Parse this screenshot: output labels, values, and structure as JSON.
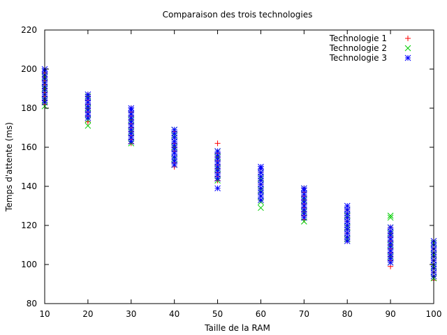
{
  "chart_data": {
    "type": "scatter",
    "title": "Comparaison des trois technologies",
    "xlabel": "Taille de la RAM",
    "ylabel": "Temps d'attente (ms)",
    "xlim": [
      10,
      100
    ],
    "ylim": [
      80,
      220
    ],
    "xticks": [
      10,
      20,
      30,
      40,
      50,
      60,
      70,
      80,
      90,
      100
    ],
    "yticks": [
      80,
      100,
      120,
      140,
      160,
      180,
      200,
      220
    ],
    "grid": false,
    "legend_position": "top-right",
    "series": [
      {
        "name": "Technologie 1",
        "marker": "plus",
        "color": "#ff0000",
        "points": [
          [
            10,
            182
          ],
          [
            10,
            184
          ],
          [
            10,
            186
          ],
          [
            10,
            188
          ],
          [
            10,
            190
          ],
          [
            10,
            192
          ],
          [
            10,
            194
          ],
          [
            10,
            196
          ],
          [
            10,
            198
          ],
          [
            10,
            200
          ],
          [
            20,
            173
          ],
          [
            20,
            176
          ],
          [
            20,
            178
          ],
          [
            20,
            180
          ],
          [
            20,
            182
          ],
          [
            20,
            184
          ],
          [
            20,
            186
          ],
          [
            20,
            187
          ],
          [
            30,
            162
          ],
          [
            30,
            164
          ],
          [
            30,
            166
          ],
          [
            30,
            168
          ],
          [
            30,
            170
          ],
          [
            30,
            172
          ],
          [
            30,
            174
          ],
          [
            30,
            176
          ],
          [
            30,
            178
          ],
          [
            30,
            180
          ],
          [
            40,
            150
          ],
          [
            40,
            152
          ],
          [
            40,
            155
          ],
          [
            40,
            158
          ],
          [
            40,
            160
          ],
          [
            40,
            162
          ],
          [
            40,
            165
          ],
          [
            40,
            168
          ],
          [
            50,
            143
          ],
          [
            50,
            145
          ],
          [
            50,
            147
          ],
          [
            50,
            149
          ],
          [
            50,
            151
          ],
          [
            50,
            153
          ],
          [
            50,
            155
          ],
          [
            50,
            157
          ],
          [
            50,
            162
          ],
          [
            60,
            133
          ],
          [
            60,
            135
          ],
          [
            60,
            137
          ],
          [
            60,
            139
          ],
          [
            60,
            141
          ],
          [
            60,
            143
          ],
          [
            60,
            145
          ],
          [
            60,
            147
          ],
          [
            60,
            149
          ],
          [
            70,
            123
          ],
          [
            70,
            125
          ],
          [
            70,
            127
          ],
          [
            70,
            129
          ],
          [
            70,
            131
          ],
          [
            70,
            133
          ],
          [
            70,
            135
          ],
          [
            70,
            137
          ],
          [
            70,
            139
          ],
          [
            80,
            112
          ],
          [
            80,
            114
          ],
          [
            80,
            116
          ],
          [
            80,
            118
          ],
          [
            80,
            120
          ],
          [
            80,
            122
          ],
          [
            80,
            124
          ],
          [
            80,
            126
          ],
          [
            80,
            128
          ],
          [
            90,
            99
          ],
          [
            90,
            102
          ],
          [
            90,
            104
          ],
          [
            90,
            106
          ],
          [
            90,
            108
          ],
          [
            90,
            110
          ],
          [
            90,
            112
          ],
          [
            90,
            114
          ],
          [
            90,
            116
          ],
          [
            90,
            119
          ],
          [
            100,
            92
          ],
          [
            100,
            94
          ],
          [
            100,
            96
          ],
          [
            100,
            98
          ],
          [
            100,
            100
          ],
          [
            100,
            102
          ],
          [
            100,
            104
          ],
          [
            100,
            106
          ],
          [
            100,
            108
          ],
          [
            100,
            110
          ]
        ]
      },
      {
        "name": "Technologie 2",
        "marker": "cross",
        "color": "#00cc00",
        "points": [
          [
            10,
            181
          ],
          [
            10,
            184
          ],
          [
            10,
            187
          ],
          [
            10,
            190
          ],
          [
            10,
            193
          ],
          [
            10,
            196
          ],
          [
            10,
            199
          ],
          [
            20,
            171
          ],
          [
            20,
            174
          ],
          [
            20,
            177
          ],
          [
            20,
            180
          ],
          [
            20,
            183
          ],
          [
            20,
            186
          ],
          [
            30,
            162
          ],
          [
            30,
            165
          ],
          [
            30,
            168
          ],
          [
            30,
            171
          ],
          [
            30,
            174
          ],
          [
            30,
            177
          ],
          [
            40,
            151
          ],
          [
            40,
            154
          ],
          [
            40,
            157
          ],
          [
            40,
            160
          ],
          [
            40,
            163
          ],
          [
            40,
            166
          ],
          [
            40,
            169
          ],
          [
            50,
            143
          ],
          [
            50,
            146
          ],
          [
            50,
            149
          ],
          [
            50,
            152
          ],
          [
            50,
            155
          ],
          [
            50,
            158
          ],
          [
            60,
            129
          ],
          [
            60,
            132
          ],
          [
            60,
            135
          ],
          [
            60,
            138
          ],
          [
            60,
            141
          ],
          [
            60,
            144
          ],
          [
            60,
            147
          ],
          [
            70,
            122
          ],
          [
            70,
            124
          ],
          [
            70,
            127
          ],
          [
            70,
            130
          ],
          [
            70,
            133
          ],
          [
            70,
            136
          ],
          [
            70,
            139
          ],
          [
            80,
            113
          ],
          [
            80,
            116
          ],
          [
            80,
            119
          ],
          [
            80,
            122
          ],
          [
            80,
            125
          ],
          [
            80,
            128
          ],
          [
            90,
            101
          ],
          [
            90,
            104
          ],
          [
            90,
            107
          ],
          [
            90,
            110
          ],
          [
            90,
            113
          ],
          [
            90,
            116
          ],
          [
            90,
            119
          ],
          [
            90,
            124
          ],
          [
            90,
            125
          ],
          [
            100,
            93
          ],
          [
            100,
            96
          ],
          [
            100,
            99
          ],
          [
            100,
            102
          ],
          [
            100,
            105
          ],
          [
            100,
            108
          ],
          [
            100,
            111
          ]
        ]
      },
      {
        "name": "Technologie 3",
        "marker": "star",
        "color": "#0000ff",
        "points": [
          [
            10,
            183
          ],
          [
            10,
            185
          ],
          [
            10,
            187
          ],
          [
            10,
            189
          ],
          [
            10,
            191
          ],
          [
            10,
            193
          ],
          [
            10,
            195
          ],
          [
            10,
            197
          ],
          [
            10,
            199
          ],
          [
            10,
            200
          ],
          [
            20,
            175
          ],
          [
            20,
            177
          ],
          [
            20,
            179
          ],
          [
            20,
            181
          ],
          [
            20,
            183
          ],
          [
            20,
            185
          ],
          [
            20,
            187
          ],
          [
            30,
            163
          ],
          [
            30,
            165
          ],
          [
            30,
            167
          ],
          [
            30,
            169
          ],
          [
            30,
            171
          ],
          [
            30,
            173
          ],
          [
            30,
            175
          ],
          [
            30,
            177
          ],
          [
            30,
            179
          ],
          [
            30,
            180
          ],
          [
            40,
            151
          ],
          [
            40,
            153
          ],
          [
            40,
            155
          ],
          [
            40,
            157
          ],
          [
            40,
            159
          ],
          [
            40,
            161
          ],
          [
            40,
            163
          ],
          [
            40,
            165
          ],
          [
            40,
            167
          ],
          [
            40,
            169
          ],
          [
            50,
            139
          ],
          [
            50,
            144
          ],
          [
            50,
            146
          ],
          [
            50,
            148
          ],
          [
            50,
            150
          ],
          [
            50,
            152
          ],
          [
            50,
            154
          ],
          [
            50,
            156
          ],
          [
            50,
            158
          ],
          [
            60,
            133
          ],
          [
            60,
            135
          ],
          [
            60,
            137
          ],
          [
            60,
            139
          ],
          [
            60,
            141
          ],
          [
            60,
            143
          ],
          [
            60,
            145
          ],
          [
            60,
            147
          ],
          [
            60,
            149
          ],
          [
            60,
            150
          ],
          [
            70,
            124
          ],
          [
            70,
            126
          ],
          [
            70,
            128
          ],
          [
            70,
            130
          ],
          [
            70,
            132
          ],
          [
            70,
            134
          ],
          [
            70,
            136
          ],
          [
            70,
            138
          ],
          [
            70,
            139
          ],
          [
            80,
            112
          ],
          [
            80,
            114
          ],
          [
            80,
            116
          ],
          [
            80,
            118
          ],
          [
            80,
            120
          ],
          [
            80,
            122
          ],
          [
            80,
            124
          ],
          [
            80,
            126
          ],
          [
            80,
            128
          ],
          [
            80,
            130
          ],
          [
            90,
            101
          ],
          [
            90,
            103
          ],
          [
            90,
            105
          ],
          [
            90,
            107
          ],
          [
            90,
            109
          ],
          [
            90,
            111
          ],
          [
            90,
            113
          ],
          [
            90,
            115
          ],
          [
            90,
            117
          ],
          [
            90,
            119
          ],
          [
            100,
            94
          ],
          [
            100,
            96
          ],
          [
            100,
            98
          ],
          [
            100,
            100
          ],
          [
            100,
            102
          ],
          [
            100,
            104
          ],
          [
            100,
            106
          ],
          [
            100,
            108
          ],
          [
            100,
            110
          ],
          [
            100,
            112
          ]
        ]
      }
    ]
  }
}
